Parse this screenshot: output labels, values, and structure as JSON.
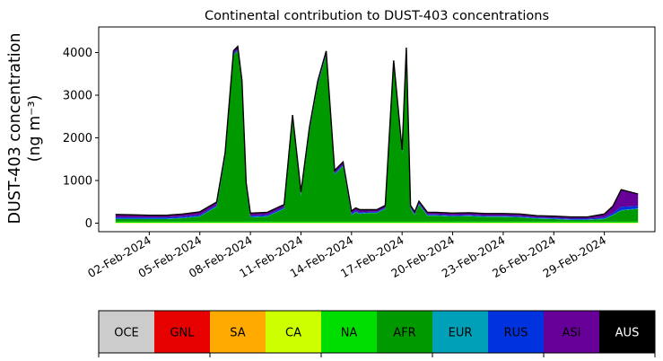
{
  "chart_data": {
    "type": "area",
    "title": "Continental contribution to DUST-403 concentrations",
    "xlabel": "",
    "ylabel_line1": "DUST-403 concentration",
    "ylabel_line2": "(ng m⁻³)",
    "x_start": "2024-01-31",
    "x_end": "2024-03-02",
    "xlim": [
      "2024-01-30",
      "2024-03-03"
    ],
    "ylim": [
      -200,
      4600
    ],
    "yticks": [
      0,
      1000,
      2000,
      3000,
      4000
    ],
    "xtick_labels": [
      "02-Feb-2024",
      "05-Feb-2024",
      "08-Feb-2024",
      "11-Feb-2024",
      "14-Feb-2024",
      "17-Feb-2024",
      "20-Feb-2024",
      "23-Feb-2024",
      "26-Feb-2024",
      "29-Feb-2024"
    ],
    "xtick_dates": [
      "2024-02-02",
      "2024-02-05",
      "2024-02-08",
      "2024-02-11",
      "2024-02-14",
      "2024-02-17",
      "2024-02-20",
      "2024-02-23",
      "2024-02-26",
      "2024-02-29"
    ],
    "series_order": [
      "OCE",
      "GNL",
      "SA",
      "CA",
      "NA",
      "AFR",
      "EUR",
      "RUS",
      "ASI",
      "AUS"
    ],
    "colors": {
      "OCE": "#cccccc",
      "GNL": "#e60000",
      "SA": "#ffaa00",
      "CA": "#ccff00",
      "NA": "#00dd00",
      "AFR": "#009900",
      "EUR": "#00a0b8",
      "RUS": "#0033dd",
      "ASI": "#660099",
      "AUS": "#000000"
    },
    "samples": {
      "date": [
        "2024-01-31",
        "2024-02-01",
        "2024-02-02",
        "2024-02-03",
        "2024-02-04",
        "2024-02-05",
        "2024-02-06",
        "2024-02-06T12",
        "2024-02-07",
        "2024-02-07T06",
        "2024-02-07T12",
        "2024-02-07T18",
        "2024-02-08",
        "2024-02-08T12",
        "2024-02-09",
        "2024-02-10",
        "2024-02-10T12",
        "2024-02-11",
        "2024-02-11T12",
        "2024-02-12",
        "2024-02-12T12",
        "2024-02-13",
        "2024-02-13T12",
        "2024-02-14",
        "2024-02-14T06",
        "2024-02-14T12",
        "2024-02-15",
        "2024-02-15T12",
        "2024-02-16",
        "2024-02-16T12",
        "2024-02-17",
        "2024-02-17T06",
        "2024-02-17T12",
        "2024-02-17T18",
        "2024-02-18",
        "2024-02-18T12",
        "2024-02-19",
        "2024-02-20",
        "2024-02-21",
        "2024-02-22",
        "2024-02-23",
        "2024-02-24",
        "2024-02-25",
        "2024-02-26",
        "2024-02-27",
        "2024-02-28",
        "2024-02-29",
        "2024-02-29T12",
        "2024-03-01",
        "2024-03-02"
      ],
      "AFR": [
        60,
        60,
        60,
        60,
        80,
        120,
        350,
        1500,
        3900,
        4000,
        3200,
        800,
        100,
        110,
        120,
        300,
        2400,
        600,
        2100,
        3200,
        3900,
        1100,
        1300,
        150,
        220,
        180,
        200,
        200,
        300,
        3700,
        1600,
        4000,
        300,
        150,
        400,
        140,
        140,
        120,
        130,
        110,
        110,
        100,
        70,
        60,
        40,
        40,
        60,
        150,
        260,
        300
      ],
      "ASI": [
        70,
        60,
        50,
        50,
        60,
        70,
        70,
        70,
        70,
        70,
        70,
        70,
        60,
        60,
        60,
        60,
        60,
        60,
        60,
        60,
        60,
        60,
        60,
        60,
        60,
        60,
        50,
        50,
        50,
        50,
        50,
        50,
        50,
        50,
        50,
        50,
        50,
        50,
        50,
        50,
        50,
        50,
        40,
        40,
        40,
        40,
        80,
        160,
        400,
        280
      ],
      "RUS": [
        30,
        30,
        30,
        30,
        30,
        30,
        30,
        30,
        30,
        30,
        30,
        30,
        30,
        30,
        30,
        30,
        30,
        30,
        30,
        30,
        30,
        30,
        30,
        30,
        30,
        30,
        20,
        20,
        20,
        20,
        20,
        20,
        20,
        20,
        20,
        20,
        20,
        20,
        20,
        20,
        20,
        20,
        20,
        20,
        20,
        20,
        30,
        40,
        80,
        60
      ],
      "EUR": [
        10,
        10,
        10,
        10,
        10,
        10,
        10,
        10,
        10,
        10,
        10,
        10,
        10,
        10,
        10,
        10,
        10,
        10,
        10,
        10,
        10,
        10,
        10,
        10,
        10,
        10,
        10,
        10,
        10,
        10,
        10,
        10,
        10,
        10,
        10,
        10,
        10,
        10,
        10,
        10,
        10,
        10,
        10,
        10,
        10,
        10,
        10,
        10,
        10,
        10
      ],
      "NA": [
        25,
        25,
        25,
        25,
        25,
        25,
        25,
        25,
        25,
        25,
        25,
        25,
        25,
        25,
        25,
        25,
        25,
        25,
        25,
        25,
        25,
        25,
        25,
        25,
        25,
        25,
        25,
        25,
        25,
        25,
        25,
        25,
        25,
        25,
        25,
        25,
        25,
        25,
        25,
        25,
        25,
        25,
        25,
        25,
        25,
        25,
        25,
        25,
        25,
        25
      ],
      "CA": [
        10,
        10,
        10,
        10,
        10,
        10,
        10,
        10,
        10,
        10,
        10,
        10,
        10,
        10,
        10,
        10,
        10,
        10,
        10,
        10,
        10,
        10,
        10,
        10,
        10,
        10,
        10,
        10,
        10,
        10,
        10,
        10,
        10,
        10,
        10,
        10,
        10,
        10,
        10,
        10,
        10,
        10,
        10,
        10,
        10,
        10,
        10,
        10,
        10,
        10
      ],
      "OCE": [
        0,
        0,
        0,
        0,
        0,
        0,
        0,
        0,
        0,
        0,
        0,
        0,
        0,
        0,
        0,
        0,
        0,
        0,
        0,
        0,
        0,
        0,
        0,
        0,
        0,
        0,
        0,
        0,
        0,
        0,
        0,
        0,
        0,
        0,
        0,
        0,
        0,
        0,
        0,
        0,
        0,
        0,
        0,
        0,
        0,
        0,
        0,
        0,
        0,
        0
      ],
      "GNL": [
        0,
        0,
        0,
        0,
        0,
        0,
        0,
        0,
        0,
        0,
        0,
        0,
        0,
        0,
        0,
        0,
        0,
        0,
        0,
        0,
        0,
        0,
        0,
        0,
        0,
        0,
        0,
        0,
        0,
        0,
        0,
        0,
        0,
        0,
        0,
        0,
        0,
        0,
        0,
        0,
        0,
        0,
        0,
        0,
        0,
        0,
        0,
        0,
        0,
        0
      ],
      "SA": [
        0,
        0,
        0,
        0,
        0,
        0,
        0,
        0,
        0,
        0,
        0,
        0,
        0,
        0,
        0,
        0,
        0,
        0,
        0,
        0,
        0,
        0,
        0,
        0,
        0,
        0,
        0,
        0,
        0,
        0,
        0,
        0,
        0,
        0,
        0,
        0,
        0,
        0,
        0,
        0,
        0,
        0,
        0,
        0,
        0,
        0,
        0,
        0,
        0,
        0
      ],
      "AUS": [
        0,
        0,
        0,
        0,
        0,
        0,
        0,
        0,
        0,
        0,
        0,
        0,
        0,
        0,
        0,
        0,
        0,
        0,
        0,
        0,
        0,
        0,
        0,
        0,
        0,
        0,
        0,
        0,
        0,
        0,
        0,
        0,
        0,
        0,
        0,
        0,
        0,
        0,
        0,
        0,
        0,
        0,
        0,
        0,
        0,
        0,
        0,
        0,
        0,
        0
      ]
    },
    "legend": {
      "placement": "bottom colorbar",
      "labels": [
        "OCE",
        "GNL",
        "SA",
        "CA",
        "NA",
        "AFR",
        "EUR",
        "RUS",
        "ASI",
        "AUS"
      ],
      "label_colors": [
        "#000000",
        "#000000",
        "#000000",
        "#000000",
        "#000000",
        "#000000",
        "#000000",
        "#000000",
        "#000000",
        "#ffffff"
      ]
    },
    "grid": false
  }
}
